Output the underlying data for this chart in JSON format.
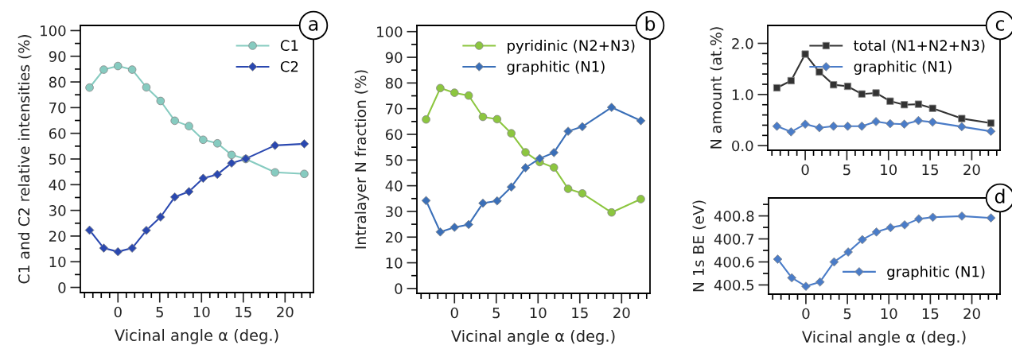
{
  "chart_data": [
    {
      "type": "line",
      "ylabel": "C1 and C2 relative intensities (%)",
      "xlabel": "Vicinal angle α (deg.)",
      "annotations": [
        "a"
      ],
      "legend": "top right",
      "grid": false,
      "x": [
        -3.4,
        -1.7,
        0,
        1.7,
        3.4,
        5.1,
        6.8,
        8.5,
        10.2,
        11.9,
        13.6,
        15.3,
        18.8,
        22.3
      ],
      "series": [
        {
          "name": "C1",
          "color": "#86cbc0",
          "marker": "circle",
          "values": [
            77.8,
            84.8,
            86.2,
            84.8,
            77.9,
            72.6,
            64.9,
            62.8,
            57.5,
            56.1,
            51.6,
            50.0,
            44.8,
            44.2
          ]
        },
        {
          "name": "C2",
          "color": "#2a48b0",
          "marker": "diamond",
          "values": [
            22.3,
            15.3,
            13.9,
            15.3,
            22.2,
            27.4,
            35.2,
            37.3,
            42.5,
            44.0,
            48.4,
            50.1,
            55.3,
            55.9
          ]
        }
      ],
      "xlim": [
        -4.5,
        23.4
      ],
      "ylim": [
        -2,
        102
      ],
      "xticks": [
        {
          "value": -4,
          "label": null
        },
        {
          "value": -3,
          "label": null
        },
        {
          "value": -2,
          "label": null
        },
        {
          "value": -1,
          "label": null
        },
        0,
        {
          "value": 1,
          "label": null
        },
        {
          "value": 2,
          "label": null
        },
        {
          "value": 3,
          "label": null
        },
        {
          "value": 4,
          "label": null
        },
        5,
        {
          "value": 6,
          "label": null
        },
        {
          "value": 7,
          "label": null
        },
        {
          "value": 8,
          "label": null
        },
        {
          "value": 9,
          "label": null
        },
        10,
        {
          "value": 11,
          "label": null
        },
        {
          "value": 12,
          "label": null
        },
        {
          "value": 13,
          "label": null
        },
        {
          "value": 14,
          "label": null
        },
        15,
        {
          "value": 16,
          "label": null
        },
        {
          "value": 17,
          "label": null
        },
        {
          "value": 18,
          "label": null
        },
        {
          "value": 19,
          "label": null
        },
        20,
        {
          "value": 21,
          "label": null
        },
        {
          "value": 22,
          "label": null
        },
        {
          "value": 23,
          "label": null
        }
      ],
      "yticks": [
        0,
        {
          "value": 5,
          "label": null
        },
        10,
        {
          "value": 15,
          "label": null
        },
        20,
        {
          "value": 25,
          "label": null
        },
        30,
        {
          "value": 35,
          "label": null
        },
        40,
        {
          "value": 45,
          "label": null
        },
        50,
        {
          "value": 55,
          "label": null
        },
        60,
        {
          "value": 65,
          "label": null
        },
        70,
        {
          "value": 75,
          "label": null
        },
        80,
        {
          "value": 85,
          "label": null
        },
        90,
        {
          "value": 95,
          "label": null
        },
        100
      ]
    },
    {
      "type": "line",
      "ylabel": "Intralayer N fraction (%)",
      "xlabel": "Vicinal angle α (deg.)",
      "annotations": [
        "b"
      ],
      "legend": "top right",
      "grid": false,
      "x": [
        -3.4,
        -1.7,
        0,
        1.7,
        3.4,
        5.1,
        6.8,
        8.5,
        10.2,
        11.9,
        13.6,
        15.3,
        18.8,
        22.3
      ],
      "series": [
        {
          "name": "pyridinic (N2+N3)",
          "color": "#8cc63f",
          "marker": "circle",
          "values": [
            65.8,
            78.0,
            76.2,
            75.1,
            66.8,
            65.9,
            60.4,
            53.0,
            49.2,
            47.1,
            38.8,
            37.0,
            29.6,
            34.8
          ]
        },
        {
          "name": "graphitic (N1)",
          "color": "#3a6fb8",
          "marker": "diamond",
          "values": [
            34.2,
            22.0,
            23.8,
            24.9,
            33.2,
            34.1,
            39.5,
            47.0,
            50.6,
            52.9,
            61.2,
            63.0,
            70.5,
            65.3
          ]
        }
      ],
      "xlim": [
        -4.5,
        23.4
      ],
      "ylim": [
        -1.9,
        102.4
      ],
      "xticks": [
        {
          "value": -4,
          "label": null
        },
        {
          "value": -3,
          "label": null
        },
        {
          "value": -2,
          "label": null
        },
        {
          "value": -1,
          "label": null
        },
        0,
        {
          "value": 1,
          "label": null
        },
        {
          "value": 2,
          "label": null
        },
        {
          "value": 3,
          "label": null
        },
        {
          "value": 4,
          "label": null
        },
        5,
        {
          "value": 6,
          "label": null
        },
        {
          "value": 7,
          "label": null
        },
        {
          "value": 8,
          "label": null
        },
        {
          "value": 9,
          "label": null
        },
        10,
        {
          "value": 11,
          "label": null
        },
        {
          "value": 12,
          "label": null
        },
        {
          "value": 13,
          "label": null
        },
        {
          "value": 14,
          "label": null
        },
        15,
        {
          "value": 16,
          "label": null
        },
        {
          "value": 17,
          "label": null
        },
        {
          "value": 18,
          "label": null
        },
        {
          "value": 19,
          "label": null
        },
        20,
        {
          "value": 21,
          "label": null
        },
        {
          "value": 22,
          "label": null
        },
        {
          "value": 23,
          "label": null
        }
      ],
      "yticks": [
        0,
        {
          "value": 5,
          "label": null
        },
        10,
        {
          "value": 15,
          "label": null
        },
        20,
        {
          "value": 25,
          "label": null
        },
        30,
        {
          "value": 35,
          "label": null
        },
        40,
        {
          "value": 45,
          "label": null
        },
        50,
        {
          "value": 55,
          "label": null
        },
        60,
        {
          "value": 65,
          "label": null
        },
        70,
        {
          "value": 75,
          "label": null
        },
        80,
        {
          "value": 85,
          "label": null
        },
        90,
        {
          "value": 95,
          "label": null
        },
        100
      ]
    },
    {
      "type": "line",
      "ylabel": "N amount (at.%)",
      "annotations": [
        "c"
      ],
      "legend": "top right",
      "grid": false,
      "x": [
        -3.4,
        -1.7,
        0,
        1.7,
        3.4,
        5.1,
        6.8,
        8.5,
        10.2,
        11.9,
        13.6,
        15.3,
        18.8,
        22.3
      ],
      "series": [
        {
          "name": "total (N1+N2+N3)",
          "color": "#333333",
          "marker": "square",
          "values": [
            1.13,
            1.27,
            1.79,
            1.44,
            1.19,
            1.16,
            1.01,
            1.03,
            0.87,
            0.8,
            0.81,
            0.73,
            0.53,
            0.44
          ]
        },
        {
          "name": "graphitic (N1)",
          "color": "#4a7cc8",
          "marker": "diamond",
          "values": [
            0.38,
            0.27,
            0.42,
            0.35,
            0.38,
            0.38,
            0.38,
            0.47,
            0.43,
            0.42,
            0.49,
            0.46,
            0.37,
            0.28
          ]
        }
      ],
      "xlim": [
        -4.5,
        23.4
      ],
      "ylim": [
        -0.09,
        2.35
      ],
      "xticks": [
        {
          "value": -4,
          "label": null
        },
        {
          "value": -3,
          "label": null
        },
        {
          "value": -2,
          "label": null
        },
        {
          "value": -1,
          "label": null
        },
        0,
        {
          "value": 1,
          "label": null
        },
        {
          "value": 2,
          "label": null
        },
        {
          "value": 3,
          "label": null
        },
        {
          "value": 4,
          "label": null
        },
        5,
        {
          "value": 6,
          "label": null
        },
        {
          "value": 7,
          "label": null
        },
        {
          "value": 8,
          "label": null
        },
        {
          "value": 9,
          "label": null
        },
        10,
        {
          "value": 11,
          "label": null
        },
        {
          "value": 12,
          "label": null
        },
        {
          "value": 13,
          "label": null
        },
        {
          "value": 14,
          "label": null
        },
        15,
        {
          "value": 16,
          "label": null
        },
        {
          "value": 17,
          "label": null
        },
        {
          "value": 18,
          "label": null
        },
        {
          "value": 19,
          "label": null
        },
        20,
        {
          "value": 21,
          "label": null
        },
        {
          "value": 22,
          "label": null
        },
        {
          "value": 23,
          "label": null
        }
      ],
      "yticks": [
        {
          "value": 0,
          "label": "0.0"
        },
        {
          "value": 0.2,
          "label": null
        },
        {
          "value": 0.4,
          "label": null
        },
        {
          "value": 0.6,
          "label": null
        },
        {
          "value": 0.8,
          "label": null
        },
        {
          "value": 1,
          "label": "1.0"
        },
        {
          "value": 1.2,
          "label": null
        },
        {
          "value": 1.4,
          "label": null
        },
        {
          "value": 1.6,
          "label": null
        },
        {
          "value": 1.8,
          "label": null
        },
        {
          "value": 2,
          "label": "2.0"
        }
      ]
    },
    {
      "type": "line",
      "ylabel": "N 1s BE (eV)",
      "xlabel": "Vicinal angle α (deg.)",
      "annotations": [
        "d"
      ],
      "legend": "bottom right",
      "grid": false,
      "x": [
        -3.4,
        -1.7,
        0,
        1.7,
        3.4,
        5.1,
        6.8,
        8.5,
        10.2,
        11.9,
        13.6,
        15.3,
        18.8,
        22.3
      ],
      "series": [
        {
          "name": "graphitic (N1)",
          "color": "#4a7cc8",
          "marker": "diamond",
          "values": [
            400.612,
            400.531,
            400.494,
            400.513,
            400.6,
            400.643,
            400.697,
            400.73,
            400.749,
            400.761,
            400.787,
            400.794,
            400.799,
            400.791
          ]
        }
      ],
      "xlim": [
        -4.5,
        23.4
      ],
      "ylim": [
        400.46,
        400.878
      ],
      "xticks": [
        {
          "value": -4,
          "label": null
        },
        {
          "value": -3,
          "label": null
        },
        {
          "value": -2,
          "label": null
        },
        {
          "value": -1,
          "label": null
        },
        0,
        {
          "value": 1,
          "label": null
        },
        {
          "value": 2,
          "label": null
        },
        {
          "value": 3,
          "label": null
        },
        {
          "value": 4,
          "label": null
        },
        5,
        {
          "value": 6,
          "label": null
        },
        {
          "value": 7,
          "label": null
        },
        {
          "value": 8,
          "label": null
        },
        {
          "value": 9,
          "label": null
        },
        10,
        {
          "value": 11,
          "label": null
        },
        {
          "value": 12,
          "label": null
        },
        {
          "value": 13,
          "label": null
        },
        {
          "value": 14,
          "label": null
        },
        15,
        {
          "value": 16,
          "label": null
        },
        {
          "value": 17,
          "label": null
        },
        {
          "value": 18,
          "label": null
        },
        {
          "value": 19,
          "label": null
        },
        20,
        {
          "value": 21,
          "label": null
        },
        {
          "value": 22,
          "label": null
        },
        {
          "value": 23,
          "label": null
        }
      ],
      "yticks": [
        400.5,
        {
          "value": 400.55,
          "label": null
        },
        400.6,
        {
          "value": 400.65,
          "label": null
        },
        400.7,
        {
          "value": 400.75,
          "label": null
        },
        400.8,
        {
          "value": 400.85,
          "label": null
        }
      ]
    }
  ]
}
